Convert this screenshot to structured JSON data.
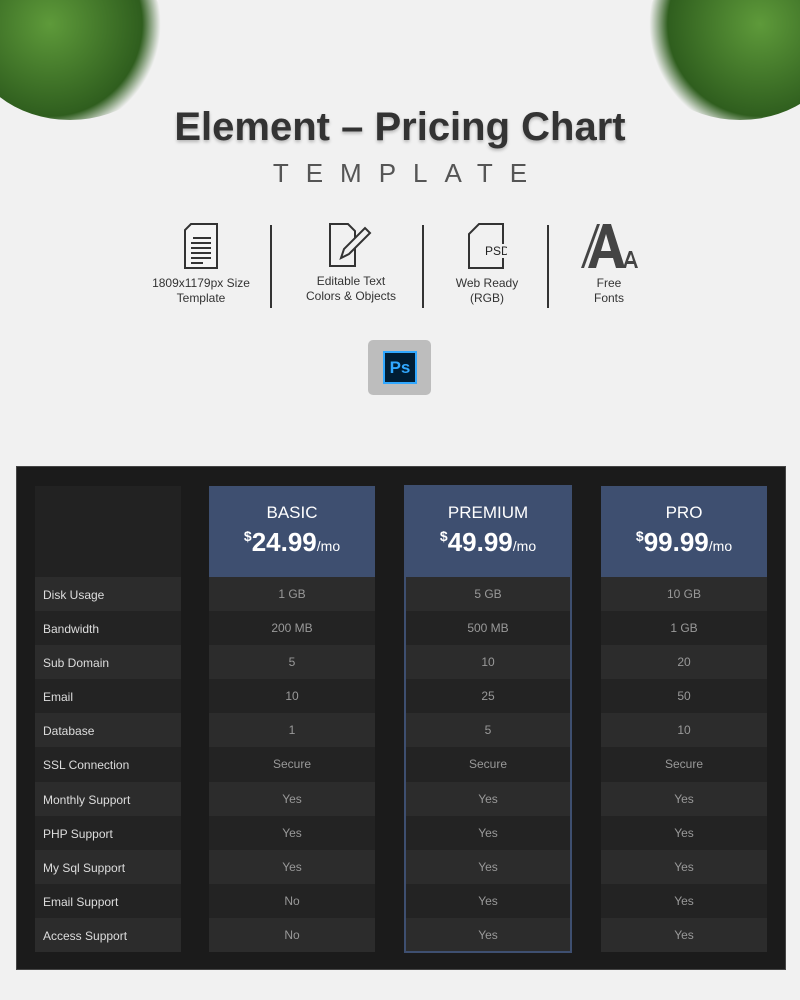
{
  "header": {
    "title": "Element – Pricing Chart",
    "subtitle": "TEMPLATE"
  },
  "features": [
    {
      "icon": "document-icon",
      "label1": "1809x1179px Size",
      "label2": "Template"
    },
    {
      "icon": "edit-file-icon",
      "label1": "Editable Text",
      "label2": "Colors & Objects"
    },
    {
      "icon": "psd-file-icon",
      "label1": "Web Ready",
      "label2": "(RGB)",
      "icon_text": "PSD"
    },
    {
      "icon": "fonts-icon",
      "label1": "Free",
      "label2": "Fonts"
    }
  ],
  "ps_badge": "Ps",
  "colors": {
    "accent": "#3e4f70",
    "panel": "#1b1b1b"
  },
  "table": {
    "rows": [
      "Disk Usage",
      "Bandwidth",
      "Sub Domain",
      "Email",
      "Database",
      "SSL Connection",
      "Monthly Support",
      "PHP Support",
      "My Sql Support",
      "Email Support",
      "Access Support"
    ],
    "plans": [
      {
        "name": "BASIC",
        "currency": "$",
        "price": "24.99",
        "period": "/mo",
        "values": [
          "1 GB",
          "200 MB",
          "5",
          "10",
          "1",
          "Secure",
          "Yes",
          "Yes",
          "Yes",
          "No",
          "No"
        ]
      },
      {
        "name": "PREMIUM",
        "currency": "$",
        "price": "49.99",
        "period": "/mo",
        "highlighted": true,
        "values": [
          "5 GB",
          "500 MB",
          "10",
          "25",
          "5",
          "Secure",
          "Yes",
          "Yes",
          "Yes",
          "Yes",
          "Yes"
        ]
      },
      {
        "name": "PRO",
        "currency": "$",
        "price": "99.99",
        "period": "/mo",
        "values": [
          "10 GB",
          "1 GB",
          "20",
          "50",
          "10",
          "Secure",
          "Yes",
          "Yes",
          "Yes",
          "Yes",
          "Yes"
        ]
      }
    ]
  }
}
